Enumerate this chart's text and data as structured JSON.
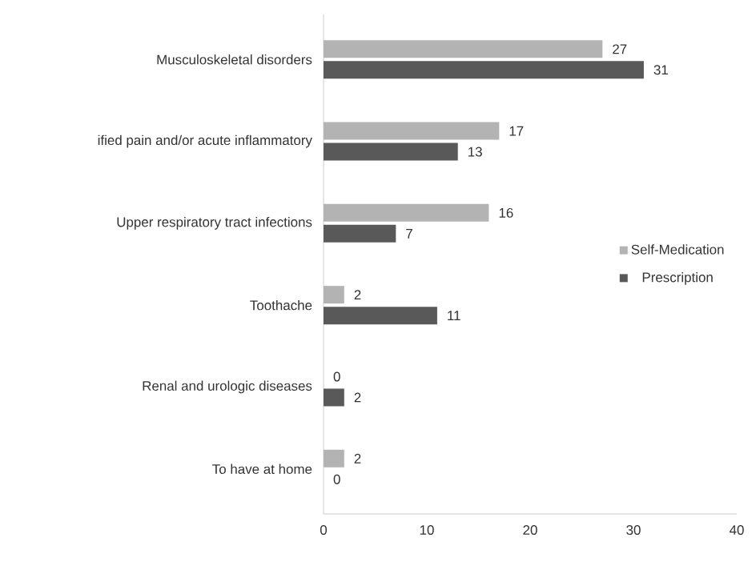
{
  "chart_data": {
    "type": "bar",
    "orientation": "horizontal",
    "categories": [
      "Musculoskeletal disorders",
      "ified pain and/or acute inflammatory",
      "Upper respiratory tract infections",
      "Toothache",
      "Renal and urologic diseases",
      "To have at home"
    ],
    "series": [
      {
        "name": "Self-Medication",
        "color": "#b3b3b3",
        "values": [
          27,
          17,
          16,
          2,
          0,
          2
        ]
      },
      {
        "name": "Prescription",
        "color": "#595959",
        "values": [
          31,
          13,
          7,
          11,
          2,
          0
        ]
      }
    ],
    "xlim": [
      0,
      40
    ],
    "xticks": [
      0,
      10,
      20,
      30,
      40
    ],
    "data_labels": true,
    "legend": "right",
    "grid": false
  }
}
